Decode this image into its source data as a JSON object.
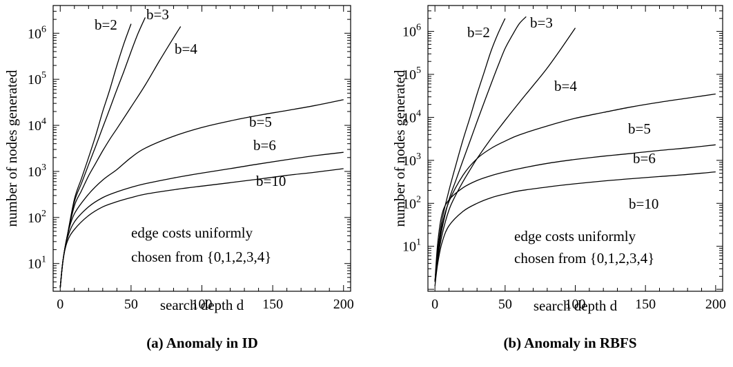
{
  "chart_data": [
    {
      "type": "line",
      "caption": "(a) Anomaly in ID",
      "xlabel": "search depth d",
      "ylabel": "number of nodes generated",
      "y_scale": "log",
      "xlim": [
        -5,
        205
      ],
      "ylim": [
        2.5,
        4000000
      ],
      "x_ticks": [
        0,
        50,
        100,
        150,
        200
      ],
      "x_tick_labels": [
        "0",
        "50",
        "100",
        "150",
        "200"
      ],
      "y_ticks": [
        10,
        100,
        1000,
        10000,
        100000,
        1000000
      ],
      "y_tick_labels": [
        {
          "base": "10",
          "exp": "1"
        },
        {
          "base": "10",
          "exp": "2"
        },
        {
          "base": "10",
          "exp": "3"
        },
        {
          "base": "10",
          "exp": "4"
        },
        {
          "base": "10",
          "exp": "5"
        },
        {
          "base": "10",
          "exp": "6"
        }
      ],
      "annotation": [
        "edge costs uniformly",
        "chosen from {0,1,2,3,4}"
      ],
      "series": [
        {
          "name": "b=2",
          "label": "b=2",
          "x": [
            0,
            2,
            5,
            10,
            15,
            20,
            25,
            30,
            35,
            40,
            45,
            50
          ],
          "y": [
            3,
            12,
            40,
            250,
            700,
            2000,
            6000,
            20000,
            60000,
            200000,
            600000,
            1600000
          ]
        },
        {
          "name": "b=3",
          "label": "b=3",
          "x": [
            0,
            2,
            5,
            10,
            15,
            20,
            25,
            30,
            35,
            40,
            45,
            50,
            55,
            60
          ],
          "y": [
            3,
            12,
            40,
            220,
            550,
            1400,
            3500,
            9000,
            23000,
            60000,
            150000,
            400000,
            1000000,
            2200000
          ]
        },
        {
          "name": "b=4",
          "label": "b=4",
          "x": [
            0,
            2,
            5,
            10,
            15,
            20,
            25,
            30,
            35,
            40,
            50,
            60,
            70,
            80,
            85
          ],
          "y": [
            3,
            12,
            40,
            180,
            380,
            800,
            1500,
            2800,
            5000,
            8500,
            25000,
            75000,
            250000,
            800000,
            1400000
          ]
        },
        {
          "name": "b=5",
          "label": "b=5",
          "x": [
            0,
            2,
            5,
            10,
            20,
            30,
            40,
            50,
            60,
            80,
            100,
            120,
            140,
            160,
            180,
            200
          ],
          "y": [
            3,
            12,
            40,
            120,
            320,
            650,
            1100,
            2000,
            3200,
            5800,
            9000,
            12500,
            16500,
            21000,
            27000,
            36000
          ]
        },
        {
          "name": "b=6",
          "label": "b=6",
          "x": [
            0,
            2,
            5,
            10,
            20,
            30,
            40,
            50,
            60,
            80,
            100,
            120,
            140,
            160,
            180,
            200
          ],
          "y": [
            3,
            12,
            35,
            80,
            170,
            270,
            360,
            450,
            540,
            720,
            920,
            1150,
            1450,
            1800,
            2200,
            2600
          ]
        },
        {
          "name": "b=10",
          "label": "b=10",
          "x": [
            0,
            2,
            5,
            10,
            20,
            30,
            40,
            50,
            60,
            80,
            100,
            120,
            140,
            160,
            180,
            200
          ],
          "y": [
            3,
            12,
            30,
            55,
            110,
            170,
            220,
            270,
            320,
            400,
            480,
            570,
            680,
            820,
            960,
            1150
          ]
        }
      ]
    },
    {
      "type": "line",
      "caption": "(b) Anomaly in RBFS",
      "xlabel": "search depth d",
      "ylabel": "number of nodes generated",
      "y_scale": "log",
      "xlim": [
        -5,
        205
      ],
      "ylim": [
        0.9,
        4000000
      ],
      "x_ticks": [
        0,
        50,
        100,
        150,
        200
      ],
      "x_tick_labels": [
        "0",
        "50",
        "100",
        "150",
        "200"
      ],
      "y_ticks": [
        10,
        100,
        1000,
        10000,
        100000,
        1000000
      ],
      "y_tick_labels": [
        {
          "base": "10",
          "exp": "1"
        },
        {
          "base": "10",
          "exp": "2"
        },
        {
          "base": "10",
          "exp": "3"
        },
        {
          "base": "10",
          "exp": "4"
        },
        {
          "base": "10",
          "exp": "5"
        },
        {
          "base": "10",
          "exp": "6"
        }
      ],
      "annotation": [
        "edge costs uniformly",
        "chosen from {0,1,2,3,4}"
      ],
      "series": [
        {
          "name": "b=2",
          "label": "b=2",
          "x": [
            0,
            2,
            5,
            10,
            15,
            20,
            25,
            30,
            35,
            40,
            45,
            50
          ],
          "y": [
            1.5,
            8,
            40,
            200,
            800,
            3000,
            10000,
            35000,
            110000,
            350000,
            900000,
            2000000
          ]
        },
        {
          "name": "b=3",
          "label": "b=3",
          "x": [
            0,
            2,
            5,
            10,
            15,
            20,
            25,
            30,
            35,
            40,
            45,
            50,
            55,
            60,
            65
          ],
          "y": [
            1.5,
            6,
            25,
            120,
            350,
            1000,
            2800,
            8000,
            22000,
            60000,
            160000,
            400000,
            800000,
            1500000,
            2200000
          ]
        },
        {
          "name": "b=4",
          "label": "b=4",
          "x": [
            0,
            2,
            5,
            10,
            15,
            20,
            25,
            30,
            40,
            50,
            60,
            70,
            80,
            90,
            100
          ],
          "y": [
            1.5,
            5,
            18,
            70,
            160,
            320,
            600,
            1100,
            3200,
            8500,
            22000,
            55000,
            140000,
            400000,
            1200000
          ]
        },
        {
          "name": "b=5",
          "label": "b=5",
          "x": [
            0,
            2,
            5,
            10,
            20,
            30,
            40,
            50,
            60,
            80,
            100,
            120,
            140,
            160,
            180,
            200
          ],
          "y": [
            1.5,
            8,
            30,
            110,
            450,
            1100,
            1900,
            2800,
            3900,
            6300,
            9500,
            13000,
            17500,
            22500,
            28000,
            35000
          ]
        },
        {
          "name": "b=6",
          "label": "b=6",
          "x": [
            0,
            2,
            5,
            10,
            20,
            30,
            40,
            50,
            60,
            80,
            100,
            120,
            140,
            160,
            180,
            200
          ],
          "y": [
            1.5,
            12,
            55,
            120,
            230,
            340,
            440,
            540,
            640,
            850,
            1050,
            1250,
            1450,
            1700,
            1950,
            2300
          ]
        },
        {
          "name": "b=10",
          "label": "b=10",
          "x": [
            0,
            2,
            5,
            10,
            20,
            30,
            40,
            50,
            60,
            80,
            100,
            120,
            140,
            160,
            180,
            200
          ],
          "y": [
            1.2,
            4,
            12,
            30,
            65,
            100,
            135,
            165,
            195,
            240,
            285,
            330,
            375,
            420,
            470,
            540
          ]
        }
      ]
    }
  ]
}
